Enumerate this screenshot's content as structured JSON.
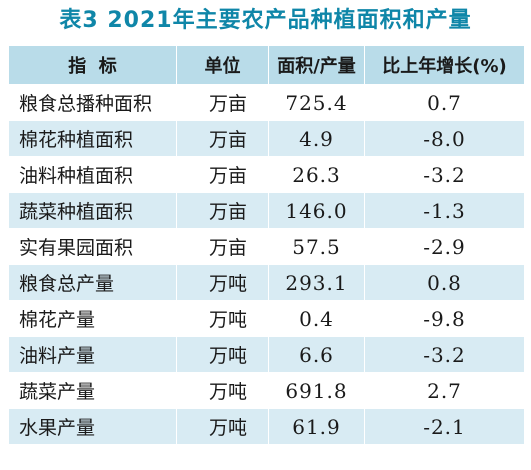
{
  "title": "表3  2021年主要农产品种植面积和产量",
  "header": {
    "col_indicator": "指  标",
    "col_unit": "单位",
    "col_value": "面积/产量",
    "col_growth": "比上年增长(%)"
  },
  "rows": [
    {
      "name": "粮食总播种面积",
      "unit": "万亩",
      "value": "725.4",
      "growth": "0.7"
    },
    {
      "name": "棉花种植面积",
      "unit": "万亩",
      "value": "4.9",
      "growth": "-8.0"
    },
    {
      "name": "油料种植面积",
      "unit": "万亩",
      "value": "26.3",
      "growth": "-3.2"
    },
    {
      "name": "蔬菜种植面积",
      "unit": "万亩",
      "value": "146.0",
      "growth": "-1.3"
    },
    {
      "name": "实有果园面积",
      "unit": "万亩",
      "value": "57.5",
      "growth": "-2.9"
    },
    {
      "name": "粮食总产量",
      "unit": "万吨",
      "value": "293.1",
      "growth": "0.8"
    },
    {
      "name": "棉花产量",
      "unit": "万吨",
      "value": "0.4",
      "growth": "-9.8"
    },
    {
      "name": "油料产量",
      "unit": "万吨",
      "value": "6.6",
      "growth": "-3.2"
    },
    {
      "name": "蔬菜产量",
      "unit": "万吨",
      "value": "691.8",
      "growth": "2.7"
    },
    {
      "name": "水果产量",
      "unit": "万吨",
      "value": "61.9",
      "growth": "-2.1"
    }
  ],
  "colors": {
    "title": "#0f86a8",
    "header_bg": "#b9dce9",
    "stripe_bg": "#d8ebf3",
    "row_bg": "#ffffff"
  }
}
